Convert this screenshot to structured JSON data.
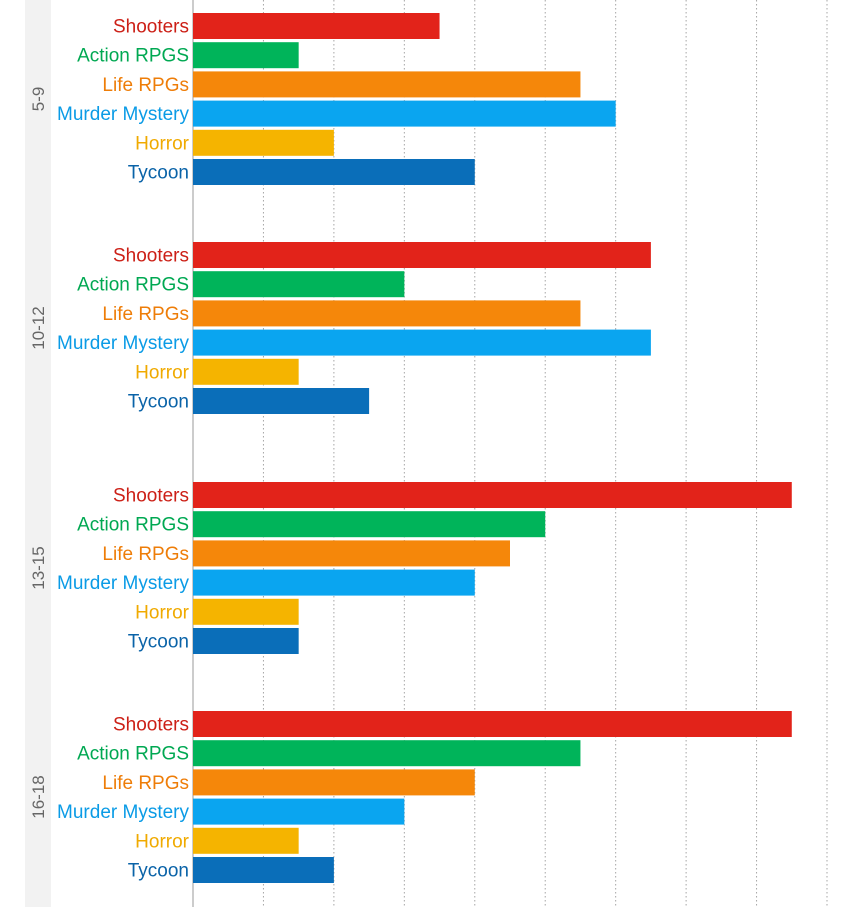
{
  "chart_data": {
    "type": "bar",
    "orientation": "horizontal",
    "grouped": true,
    "xlim": [
      0,
      9
    ],
    "grid": "vertical-dotted",
    "axis_ticks_visible": false,
    "groups": [
      {
        "name": "5-9",
        "values": [
          3.5,
          1.5,
          5.5,
          6,
          2,
          4
        ]
      },
      {
        "name": "10-12",
        "values": [
          6.5,
          3,
          5.5,
          6.5,
          1.5,
          2.5
        ]
      },
      {
        "name": "13-15",
        "values": [
          8.5,
          5,
          4.5,
          4,
          1.5,
          1.5
        ]
      },
      {
        "name": "16-18",
        "values": [
          8.5,
          5.5,
          4,
          3,
          1.5,
          2
        ]
      }
    ],
    "categories": [
      {
        "label": "Shooters",
        "color": "#e2231a"
      },
      {
        "label": "Action RPGS",
        "color": "#00b45a"
      },
      {
        "label": "Life RPGs",
        "color": "#f5870a"
      },
      {
        "label": "Murder Mystery",
        "color": "#0aa5f0"
      },
      {
        "label": "Horror",
        "color": "#f5b400"
      },
      {
        "label": "Tycoon",
        "color": "#0a6eb9"
      }
    ],
    "label_colors": {
      "Shooters": "#cc1f16",
      "Action RPGS": "#00a852",
      "Life RPGs": "#ee7d08",
      "Murder Mystery": "#0a9be6",
      "Horror": "#f0aa00",
      "Tycoon": "#0a63a8"
    }
  }
}
